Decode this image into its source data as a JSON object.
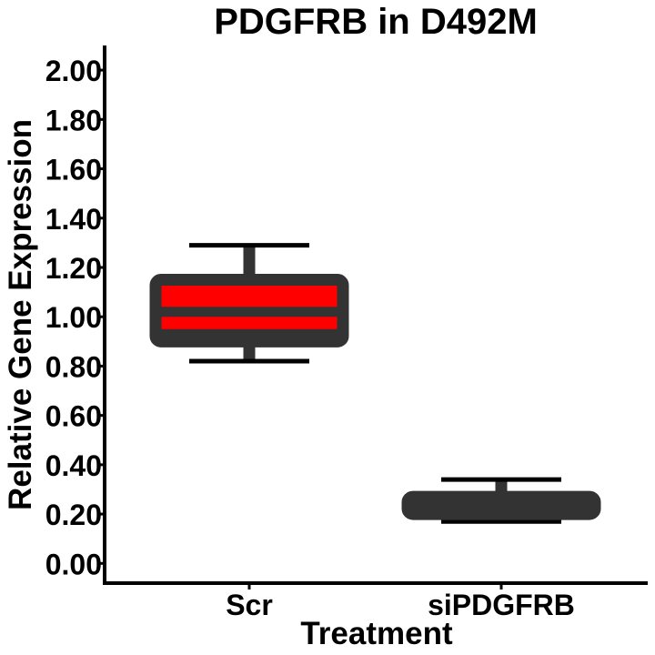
{
  "chart_data": {
    "type": "box",
    "title": "PDGFRB in D492M",
    "xlabel": "Treatment",
    "ylabel": "Relative Gene Expression",
    "ylim": [
      -0.08,
      2.1
    ],
    "yticks": [
      "0.00",
      "0.20",
      "0.40",
      "0.60",
      "0.80",
      "1.00",
      "1.20",
      "1.40",
      "1.60",
      "1.80",
      "2.00"
    ],
    "categories": [
      "Scr",
      "siPDGFRB"
    ],
    "boxes": [
      {
        "category": "Scr",
        "whisker_low": 0.82,
        "q1": 0.9,
        "median": 1.02,
        "q3": 1.15,
        "whisker_high": 1.29,
        "fill": "#ff0000",
        "inner_line": 0.93
      },
      {
        "category": "siPDGFRB",
        "whisker_low": 0.17,
        "q1": 0.2,
        "median": 0.23,
        "q3": 0.27,
        "whisker_high": 0.34,
        "fill": "#333333"
      }
    ],
    "colors": {
      "box_outline": "#333333",
      "axis": "#000000",
      "scr_fill": "#ff0000"
    },
    "grid": false,
    "legend": "none"
  }
}
